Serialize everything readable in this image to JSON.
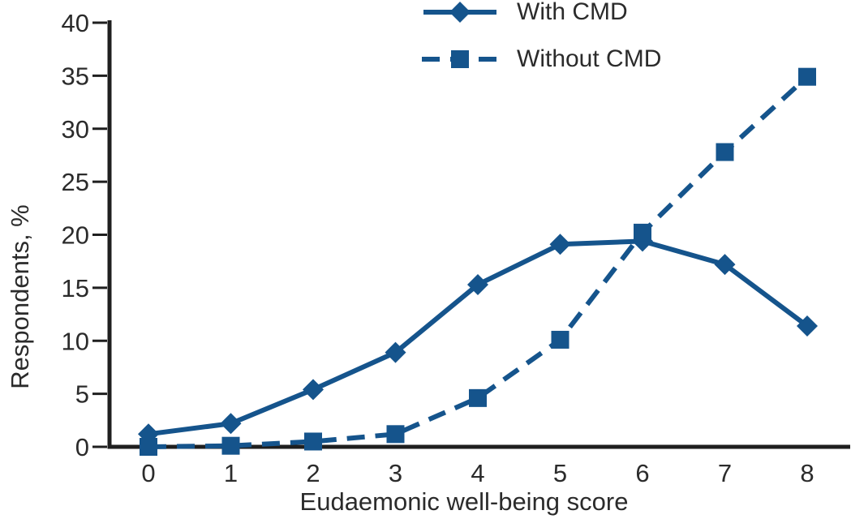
{
  "colors": {
    "series_blue": "#15548c",
    "axis_black": "#1f1f1f",
    "text_dark": "#2b2b2b",
    "background": "#ffffff"
  },
  "chart_data": {
    "type": "line",
    "title": "",
    "xlabel": "Eudaemonic well-being score",
    "ylabel": "Respondents, %",
    "x": [
      0,
      1,
      2,
      3,
      4,
      5,
      6,
      7,
      8
    ],
    "xlim": [
      0,
      8
    ],
    "ylim": [
      0,
      40
    ],
    "yticks": [
      0,
      5,
      10,
      15,
      20,
      25,
      30,
      35,
      40
    ],
    "grid": false,
    "legend_position": "top-center",
    "series": [
      {
        "name": "With CMD",
        "line_style": "solid",
        "marker": "diamond",
        "values": [
          1.2,
          2.2,
          5.4,
          8.9,
          15.3,
          19.1,
          19.4,
          17.2,
          11.4
        ]
      },
      {
        "name": "Without CMD",
        "line_style": "dashed",
        "marker": "square",
        "values": [
          0.0,
          0.1,
          0.5,
          1.2,
          4.6,
          10.1,
          20.2,
          27.8,
          34.9
        ]
      }
    ]
  }
}
